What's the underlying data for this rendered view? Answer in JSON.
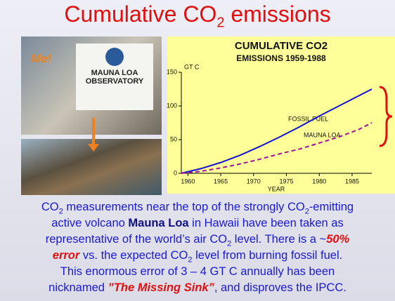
{
  "title": {
    "main": "Cumulative CO",
    "sub": "2",
    "rest": " emissions"
  },
  "photo": {
    "caption": "Me!",
    "sign": [
      "MAUNA LOA",
      "OBSERVATORY"
    ]
  },
  "chart_data": {
    "type": "line",
    "title": "CUMULATIVE CO2",
    "subtitle": "EMISSIONS 1959-1988",
    "y_label": "GT C",
    "x_label": "YEAR",
    "x": [
      1959,
      1962,
      1965,
      1968,
      1971,
      1974,
      1977,
      1980,
      1983,
      1986,
      1988
    ],
    "series": [
      {
        "name": "FOSSIL FUEL",
        "color": "#1414d4",
        "linestyle": "solid",
        "values": [
          0,
          7,
          16,
          27,
          40,
          54,
          69,
          85,
          100,
          115,
          125
        ]
      },
      {
        "name": "MAUNA LOA",
        "color": "#a0139c",
        "linestyle": "dashed",
        "values": [
          0,
          3,
          8,
          14,
          21,
          29,
          36,
          45,
          54,
          65,
          75
        ]
      }
    ],
    "xlim": [
      1959,
      1988
    ],
    "xticks": [
      1960,
      1965,
      1970,
      1975,
      1980,
      1985
    ],
    "ylim": [
      0,
      150
    ],
    "yticks": [
      0,
      50,
      100,
      150
    ]
  },
  "body": [
    "CO",
    "2",
    " measurements near the top of the strongly CO",
    "2",
    "-emitting",
    "active volcano ",
    "Mauna Loa",
    " in Hawaii have been taken as",
    "representative of the world’s air CO",
    "2",
    " level. There is a ~",
    "50%",
    "error",
    " vs. the expected CO",
    "2",
    " level from burning fossil fuel.",
    "This enormous error of 3 – 4 GT C annually has been",
    "nicknamed ",
    "”The Missing Sink”",
    ", and disproves the IPCC."
  ]
}
